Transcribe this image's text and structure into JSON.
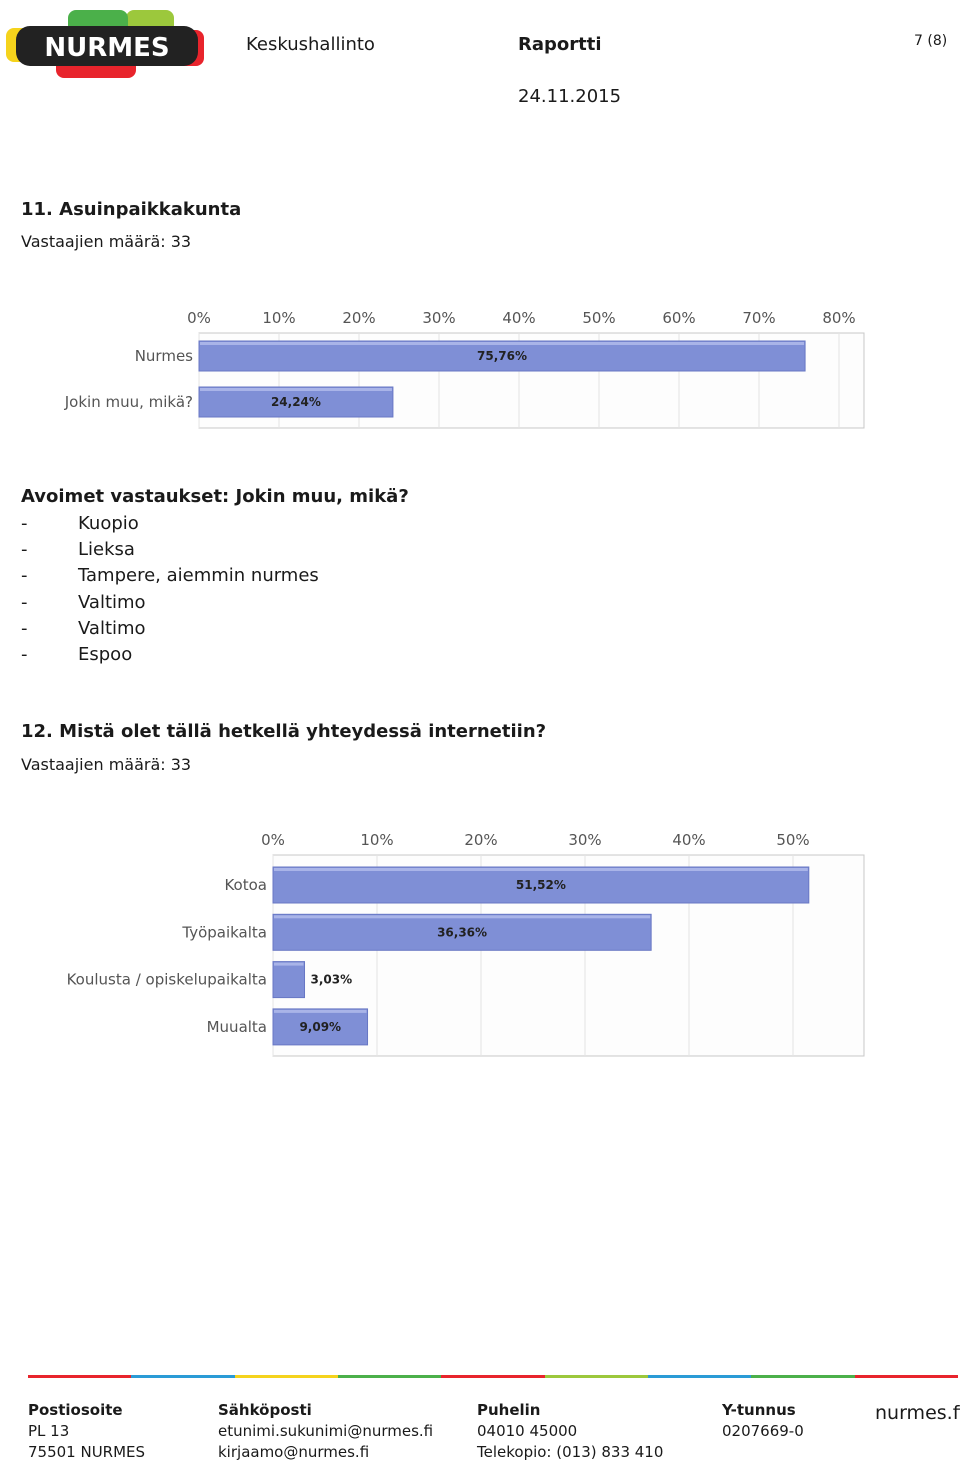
{
  "header": {
    "logo_text": "NURMES",
    "org": "Keskushallinto",
    "doc_type": "Raportti",
    "date": "24.11.2015",
    "page": "7 (8)"
  },
  "q11": {
    "title": "11. Asuinpaikkakunta",
    "respondents": "Vastaajien määrä: 33"
  },
  "open_answers": {
    "title": "Avoimet vastaukset: Jokin muu, mikä?",
    "items": [
      "Kuopio",
      "Lieksa",
      "Tampere, aiemmin nurmes",
      "Valtimo",
      "Valtimo",
      "Espoo"
    ],
    "bullet": "-"
  },
  "q12": {
    "title": "12. Mistä olet tällä hetkellä yhteydessä internetiin?",
    "respondents": "Vastaajien määrä: 33"
  },
  "chart_data": [
    {
      "type": "bar",
      "orientation": "horizontal",
      "categories": [
        "Nurmes",
        "Jokin muu, mikä?"
      ],
      "values": [
        75.76,
        24.24
      ],
      "value_labels": [
        "75,76%",
        "24,24%"
      ],
      "xlim": [
        0,
        80
      ],
      "xticks": [
        "0%",
        "10%",
        "20%",
        "30%",
        "40%",
        "50%",
        "60%",
        "70%",
        "80%"
      ],
      "grid": true,
      "bar_color": "#7f8fd6"
    },
    {
      "type": "bar",
      "orientation": "horizontal",
      "categories": [
        "Kotoa",
        "Työpaikalta",
        "Koulusta / opiskelupaikalta",
        "Muualta"
      ],
      "values": [
        51.52,
        36.36,
        3.03,
        9.09
      ],
      "value_labels": [
        "51,52%",
        "36,36%",
        "3,03%",
        "9,09%"
      ],
      "xlim": [
        0,
        50
      ],
      "xticks": [
        "0%",
        "10%",
        "20%",
        "30%",
        "40%",
        "50%"
      ],
      "grid": true,
      "bar_color": "#7f8fd6"
    }
  ],
  "footer": {
    "postal_h": "Postiosoite",
    "postal_1": "PL 13",
    "postal_2": "75501 NURMES",
    "email_h": "Sähköposti",
    "email_1": "etunimi.sukunimi@nurmes.fi",
    "email_2": "kirjaamo@nurmes.fi",
    "phone_h": "Puhelin",
    "phone_1": "04010 45000",
    "phone_2": "Telekopio: (013) 833 410",
    "yt_h": "Y-tunnus",
    "yt_1": "0207669-0",
    "site": "nurmes.fi",
    "line_colors": [
      "#e8242c",
      "#2a9bd6",
      "#f5d31c",
      "#4bb04a",
      "#e8242c",
      "#9cc83c",
      "#2a9bd6",
      "#4bb04a",
      "#e8242c"
    ]
  }
}
